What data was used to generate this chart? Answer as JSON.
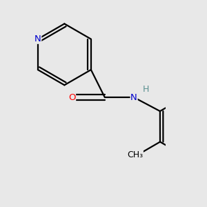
{
  "background_color": "#e8e8e8",
  "bond_color": "#000000",
  "bond_width": 1.6,
  "atom_colors": {
    "N": "#0000cc",
    "O": "#ff0000",
    "S": "#cccc00",
    "H": "#5a9090",
    "C": "#000000"
  },
  "font_size_atom": 9.5,
  "font_size_methyl": 9.0,
  "font_size_H": 9.0
}
